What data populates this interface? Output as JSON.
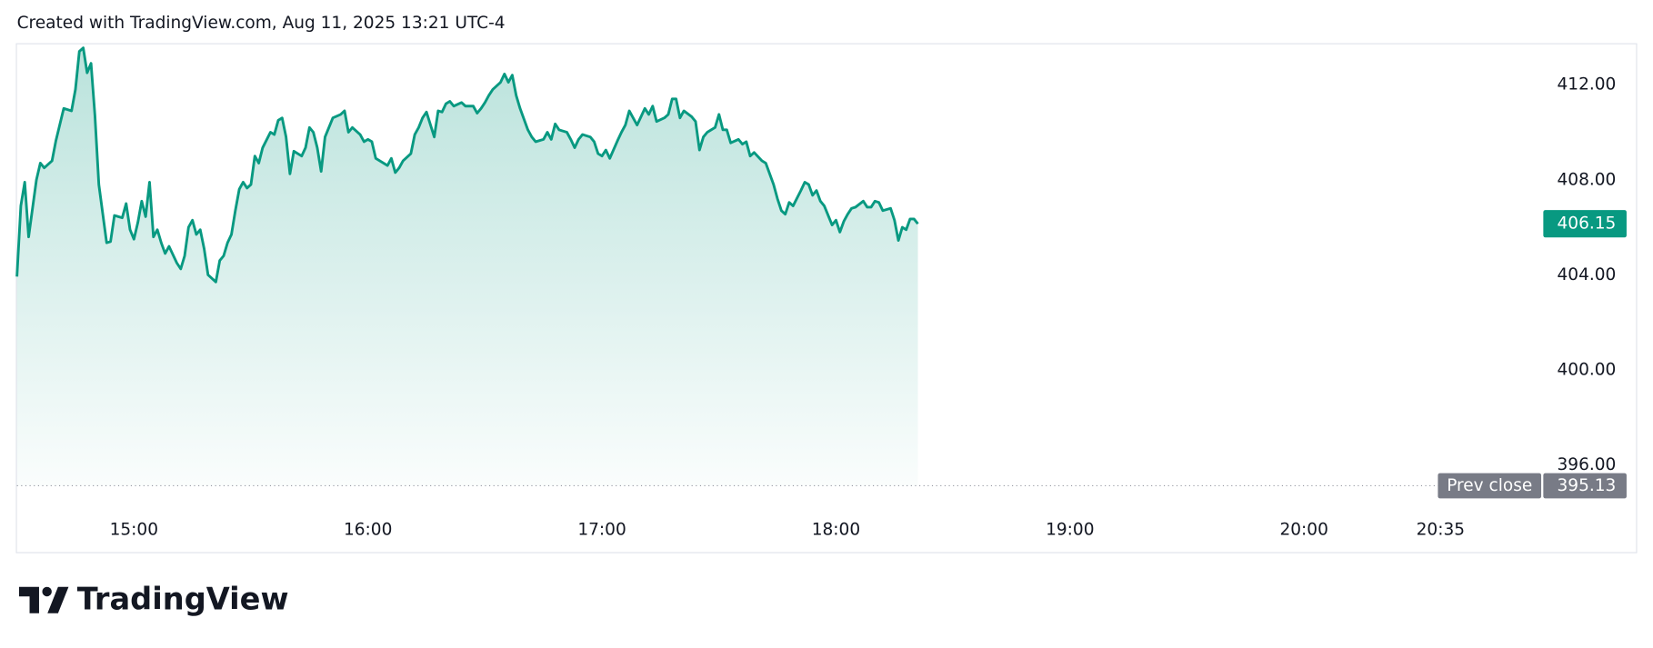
{
  "brand": "TradingView",
  "chart_data": {
    "type": "area",
    "title": "Created with TradingView.com, Aug 11, 2025 13:21 UTC-4",
    "color": "#089981",
    "x": [
      "14:30",
      "14:31",
      "14:32",
      "14:33",
      "14:35",
      "14:36",
      "14:37",
      "14:39",
      "14:40",
      "14:42",
      "14:44",
      "14:45",
      "14:46",
      "14:47",
      "14:48",
      "14:49",
      "14:50",
      "14:51",
      "14:53",
      "14:54",
      "14:55",
      "14:57",
      "14:58",
      "14:59",
      "15:00",
      "15:01",
      "15:02",
      "15:03",
      "15:04",
      "15:05",
      "15:06",
      "15:07",
      "15:08",
      "15:09",
      "15:11",
      "15:12",
      "15:13",
      "15:14",
      "15:15",
      "15:16",
      "15:17",
      "15:18",
      "15:19",
      "15:21",
      "15:22",
      "15:23",
      "15:24",
      "15:25",
      "15:26",
      "15:27",
      "15:28",
      "15:29",
      "15:30",
      "15:31",
      "15:32",
      "15:33",
      "15:35",
      "15:36",
      "15:37",
      "15:38",
      "15:39",
      "15:40",
      "15:41",
      "15:43",
      "15:44",
      "15:45",
      "15:46",
      "15:47",
      "15:48",
      "15:49",
      "15:51",
      "15:53",
      "15:54",
      "15:55",
      "15:56",
      "15:58",
      "15:59",
      "16:00",
      "16:01",
      "16:02",
      "16:04",
      "16:05",
      "16:06",
      "16:07",
      "16:08",
      "16:09",
      "16:11",
      "16:12",
      "16:13",
      "16:14",
      "16:15",
      "16:17",
      "16:18",
      "16:19",
      "16:20",
      "16:21",
      "16:22",
      "16:24",
      "16:25",
      "16:27",
      "16:28",
      "16:29",
      "16:30",
      "16:31",
      "16:32",
      "16:34",
      "16:35",
      "16:36",
      "16:37",
      "16:38",
      "16:39",
      "16:41",
      "16:42",
      "16:43",
      "16:45",
      "16:46",
      "16:47",
      "16:48",
      "16:49",
      "16:51",
      "16:52",
      "16:53",
      "16:54",
      "16:55",
      "16:57",
      "16:58",
      "16:59",
      "17:00",
      "17:01",
      "17:02",
      "17:04",
      "17:05",
      "17:06",
      "17:07",
      "17:09",
      "17:10",
      "17:11",
      "17:12",
      "17:13",
      "17:14",
      "17:16",
      "17:17",
      "17:18",
      "17:19",
      "17:20",
      "17:21",
      "17:23",
      "17:24",
      "17:25",
      "17:26",
      "17:27",
      "17:29",
      "17:30",
      "17:31",
      "17:32",
      "17:33",
      "17:35",
      "17:36",
      "17:37",
      "17:38",
      "17:39",
      "17:41",
      "17:42",
      "17:43",
      "17:44",
      "17:45",
      "17:46",
      "17:47",
      "17:48",
      "17:49",
      "17:51",
      "17:52",
      "17:53",
      "17:54",
      "17:55",
      "17:56",
      "17:57",
      "17:59",
      "18:00",
      "18:01",
      "18:02",
      "18:03",
      "18:04",
      "18:05",
      "18:07",
      "18:08",
      "18:09",
      "18:10",
      "18:11",
      "18:12",
      "18:14",
      "18:15",
      "18:16",
      "18:17",
      "18:18",
      "18:19",
      "18:20",
      "18:21"
    ],
    "values": [
      403.93,
      406.9,
      407.9,
      405.6,
      408.0,
      408.7,
      408.5,
      408.8,
      409.65,
      411.0,
      410.9,
      411.8,
      413.4,
      413.55,
      412.5,
      412.9,
      410.7,
      407.8,
      405.35,
      405.4,
      406.5,
      406.4,
      407.0,
      405.9,
      405.5,
      406.2,
      407.1,
      406.45,
      407.9,
      405.6,
      405.9,
      405.35,
      404.9,
      405.2,
      404.5,
      404.25,
      404.8,
      406.0,
      406.3,
      405.7,
      405.9,
      405.1,
      404.0,
      403.7,
      404.6,
      404.8,
      405.35,
      405.7,
      406.7,
      407.6,
      407.9,
      407.65,
      407.8,
      409.0,
      408.7,
      409.35,
      410.0,
      409.9,
      410.5,
      410.6,
      409.8,
      408.25,
      409.2,
      409.0,
      409.35,
      410.2,
      410.0,
      409.35,
      408.35,
      409.8,
      410.6,
      410.75,
      410.9,
      410.0,
      410.2,
      409.9,
      409.6,
      409.7,
      409.6,
      408.9,
      408.7,
      408.6,
      408.9,
      408.3,
      408.5,
      408.8,
      409.1,
      409.9,
      410.2,
      410.6,
      410.85,
      409.8,
      410.9,
      410.85,
      411.2,
      411.3,
      411.1,
      411.25,
      411.1,
      411.1,
      410.8,
      411.0,
      411.25,
      411.55,
      411.8,
      412.1,
      412.45,
      412.1,
      412.4,
      411.55,
      411.0,
      410.1,
      409.8,
      409.6,
      409.7,
      410.0,
      409.7,
      410.35,
      410.1,
      410.0,
      409.7,
      409.35,
      409.7,
      409.9,
      409.8,
      409.6,
      409.1,
      409.0,
      409.25,
      408.9,
      409.65,
      410.0,
      410.3,
      410.9,
      410.3,
      410.65,
      411.0,
      410.75,
      411.1,
      410.45,
      410.6,
      410.75,
      411.4,
      411.4,
      410.6,
      410.9,
      410.65,
      410.45,
      409.25,
      409.8,
      410.0,
      410.2,
      410.75,
      410.1,
      410.1,
      409.55,
      409.7,
      409.5,
      409.6,
      409.0,
      409.15,
      408.8,
      408.7,
      408.25,
      407.8,
      407.2,
      406.7,
      406.55,
      407.05,
      406.9,
      407.55,
      407.9,
      407.8,
      407.35,
      407.55,
      407.1,
      406.9,
      406.1,
      406.3,
      405.8,
      406.25,
      406.55,
      406.8,
      406.85,
      407.1,
      406.85,
      406.85,
      407.1,
      407.05,
      406.7,
      406.8,
      406.3,
      405.45,
      406.0,
      405.9,
      406.35,
      406.35,
      406.15
    ],
    "last_price": 406.15,
    "reference_line": {
      "label": "Prev close",
      "value": 395.13
    },
    "xlim": [
      "14:30",
      "21:00"
    ],
    "xticks": [
      "15:00",
      "16:00",
      "17:00",
      "18:00",
      "19:00",
      "20:00",
      "20:35"
    ],
    "ylim": [
      394.2,
      413.7
    ],
    "yticks": [
      {
        "value": 412,
        "label": "412.00"
      },
      {
        "value": 408,
        "label": "408.00"
      },
      {
        "value": 404,
        "label": "404.00"
      },
      {
        "value": 400,
        "label": "400.00"
      },
      {
        "value": 396,
        "label": "396.00"
      }
    ]
  }
}
